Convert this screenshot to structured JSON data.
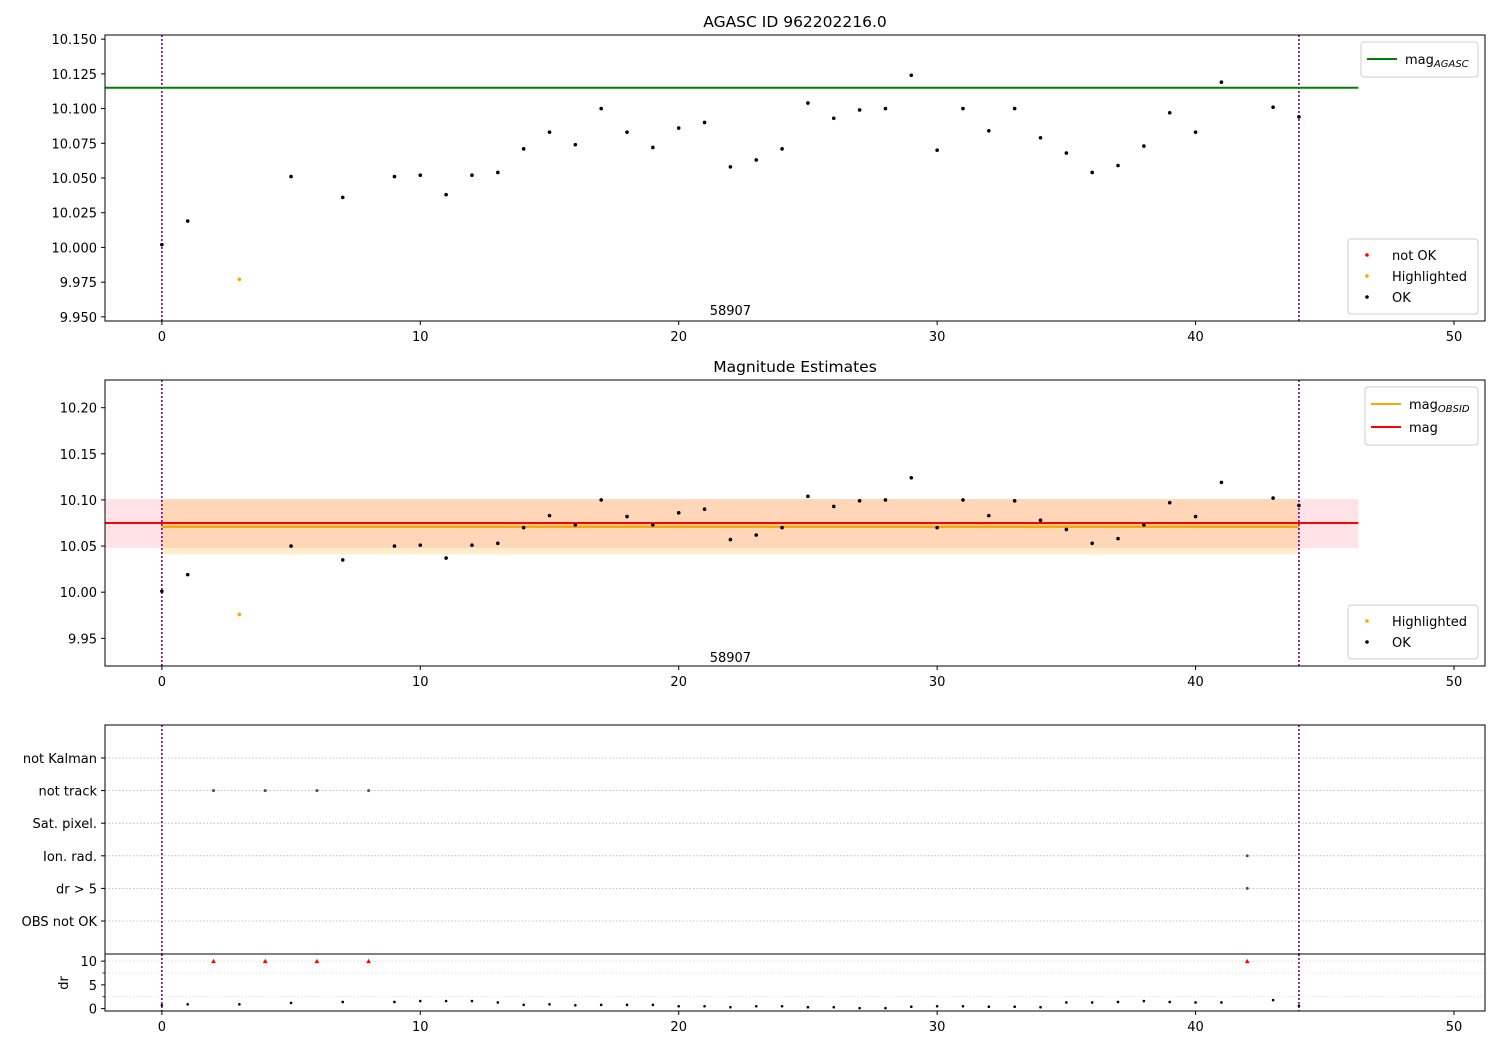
{
  "chart_data": [
    {
      "type": "scatter",
      "title": "AGASC ID 962202216.0",
      "xlim": [
        -2.2,
        51.2
      ],
      "ylim": [
        9.947,
        10.153
      ],
      "xticks": [
        0,
        10,
        20,
        30,
        40,
        50
      ],
      "yticks": [
        9.95,
        9.975,
        10.0,
        10.025,
        10.05,
        10.075,
        10.1,
        10.125,
        10.15
      ],
      "ytick_labels": [
        "9.950",
        "9.975",
        "10.000",
        "10.025",
        "10.050",
        "10.075",
        "10.100",
        "10.125",
        "10.150"
      ],
      "text_annotation": {
        "x": 22,
        "y": 9.955,
        "text": "58907"
      },
      "vlines": [
        0,
        44
      ],
      "vline_color": "#800080",
      "hline": {
        "name": "magAGASC",
        "label_main": "mag",
        "label_sub": "AGASC",
        "y": 10.115,
        "x_end": 46.3,
        "color": "#008000"
      },
      "series": [
        {
          "name": "not OK",
          "color": "#ff0000",
          "x": [],
          "y": []
        },
        {
          "name": "Highlighted",
          "color": "#ffa500",
          "x": [
            3
          ],
          "y": [
            9.977
          ]
        },
        {
          "name": "OK",
          "color": "#000000",
          "x": [
            0,
            1,
            5,
            7,
            9,
            10,
            11,
            12,
            13,
            14,
            15,
            16,
            17,
            18,
            19,
            20,
            21,
            22,
            23,
            24,
            25,
            26,
            27,
            28,
            29,
            30,
            31,
            32,
            33,
            34,
            35,
            36,
            37,
            38,
            39,
            40,
            41,
            43,
            44
          ],
          "y": [
            10.002,
            10.019,
            10.051,
            10.036,
            10.051,
            10.052,
            10.038,
            10.052,
            10.054,
            10.071,
            10.083,
            10.074,
            10.1,
            10.083,
            10.072,
            10.086,
            10.09,
            10.058,
            10.063,
            10.071,
            10.104,
            10.093,
            10.099,
            10.1,
            10.124,
            10.07,
            10.1,
            10.084,
            10.1,
            10.079,
            10.068,
            10.054,
            10.059,
            10.073,
            10.097,
            10.083,
            10.119,
            10.101,
            10.094
          ]
        }
      ],
      "legend_lines": [
        {
          "label_main": "mag",
          "label_sub": "AGASC",
          "color": "#008000"
        }
      ],
      "legend_lines_loc": "upper right",
      "legend_points": [
        {
          "label": "not OK",
          "color": "#ff0000"
        },
        {
          "label": "Highlighted",
          "color": "#ffa500"
        },
        {
          "label": "OK",
          "color": "#000000"
        }
      ],
      "legend_points_loc": "lower right"
    },
    {
      "type": "scatter",
      "title": "Magnitude Estimates",
      "xlim": [
        -2.2,
        51.2
      ],
      "ylim": [
        9.92,
        10.23
      ],
      "xticks": [
        0,
        10,
        20,
        30,
        40,
        50
      ],
      "yticks": [
        9.95,
        10.0,
        10.05,
        10.1,
        10.15,
        10.2
      ],
      "ytick_labels": [
        "9.95",
        "10.00",
        "10.05",
        "10.10",
        "10.15",
        "10.20"
      ],
      "text_annotation": {
        "x": 22,
        "y": 9.93,
        "text": "58907"
      },
      "vlines": [
        0,
        44
      ],
      "vline_color": "#800080",
      "bands": [
        {
          "x": [
            -2.2,
            46.3
          ],
          "y": [
            10.048,
            10.101
          ],
          "color": "#ff8090",
          "opacity": 0.22
        },
        {
          "x": [
            0,
            44
          ],
          "y": [
            10.041,
            10.101
          ],
          "color": "#ffa500",
          "opacity": 0.2
        }
      ],
      "lines": [
        {
          "label_main": "mag",
          "label_sub": "OBSID",
          "x": [
            0,
            44
          ],
          "y": 10.071,
          "color": "#ffa500",
          "width": 2.5
        },
        {
          "label_main": "mag",
          "label_sub": "",
          "x": [
            -2.2,
            46.3
          ],
          "y": 10.075,
          "color": "#ff0000",
          "width": 2
        }
      ],
      "series": [
        {
          "name": "Highlighted",
          "color": "#ffa500",
          "x": [
            3
          ],
          "y": [
            9.976
          ]
        },
        {
          "name": "OK",
          "color": "#000000",
          "x": [
            0,
            1,
            5,
            7,
            9,
            10,
            11,
            12,
            13,
            14,
            15,
            16,
            17,
            18,
            19,
            20,
            21,
            22,
            23,
            24,
            25,
            26,
            27,
            28,
            29,
            30,
            31,
            32,
            33,
            34,
            35,
            36,
            37,
            38,
            39,
            40,
            41,
            43,
            44
          ],
          "y": [
            10.001,
            10.019,
            10.05,
            10.035,
            10.05,
            10.051,
            10.037,
            10.051,
            10.053,
            10.07,
            10.083,
            10.073,
            10.1,
            10.082,
            10.073,
            10.086,
            10.09,
            10.057,
            10.062,
            10.07,
            10.104,
            10.093,
            10.099,
            10.1,
            10.124,
            10.07,
            10.1,
            10.083,
            10.099,
            10.078,
            10.068,
            10.053,
            10.058,
            10.073,
            10.097,
            10.082,
            10.119,
            10.102,
            10.094
          ]
        }
      ],
      "legend_lines": [
        {
          "label_main": "mag",
          "label_sub": "OBSID",
          "color": "#ffa500"
        },
        {
          "label_main": "mag",
          "label_sub": "",
          "color": "#ff0000"
        }
      ],
      "legend_lines_loc": "upper right",
      "legend_points": [
        {
          "label": "Highlighted",
          "color": "#ffa500"
        },
        {
          "label": "OK",
          "color": "#000000"
        }
      ],
      "legend_points_loc": "lower right"
    },
    {
      "type": "scatter",
      "title": "",
      "xlim": [
        -2.2,
        51.2
      ],
      "ylim": [
        -0.5,
        6.5
      ],
      "xticks": [
        0,
        10,
        20,
        30,
        40,
        50
      ],
      "category_rows": [
        "not Kalman",
        "not track",
        "Sat. pixel.",
        "Ion. rad.",
        "dr > 5",
        "OBS not OK"
      ],
      "flags": [
        {
          "row": "not track",
          "x": [
            2,
            4,
            6,
            8
          ]
        },
        {
          "row": "Ion. rad.",
          "x": [
            42
          ]
        },
        {
          "row": "dr > 5",
          "x": [
            42
          ]
        }
      ],
      "vlines": [
        0,
        44
      ],
      "vline_color": "#800080"
    },
    {
      "type": "scatter",
      "title": "",
      "ylabel": "dr",
      "xlim": [
        -2.2,
        51.2
      ],
      "ylim": [
        -0.5,
        11.5
      ],
      "xticks": [
        0,
        10,
        20,
        30,
        40,
        50
      ],
      "yticks": [
        0,
        5,
        10
      ],
      "vlines": [
        0,
        44
      ],
      "vline_color": "#800080",
      "hline": {
        "y": 10,
        "color": "#d3d3d3"
      },
      "series": [
        {
          "name": "dr",
          "color": "#000000",
          "x": [
            0,
            1,
            3,
            5,
            7,
            9,
            10,
            11,
            12,
            13,
            14,
            15,
            16,
            17,
            18,
            19,
            20,
            21,
            22,
            23,
            24,
            25,
            26,
            27,
            28,
            29,
            30,
            31,
            32,
            33,
            34,
            35,
            36,
            37,
            38,
            39,
            40,
            41,
            43,
            44
          ],
          "y": [
            0.7,
            0.9,
            0.9,
            1.2,
            1.4,
            1.4,
            1.6,
            1.6,
            1.6,
            1.3,
            0.8,
            0.9,
            0.7,
            0.8,
            0.8,
            0.8,
            0.5,
            0.5,
            0.3,
            0.5,
            0.5,
            0.3,
            0.3,
            0.1,
            0.1,
            0.4,
            0.5,
            0.5,
            0.4,
            0.4,
            0.3,
            1.3,
            1.3,
            1.4,
            1.6,
            1.4,
            1.3,
            1.3,
            1.8,
            0.6
          ]
        },
        {
          "name": "dr > 5",
          "color": "#ff0000",
          "marker": "triangle",
          "x": [
            2,
            4,
            6,
            8,
            42
          ],
          "y": [
            10,
            10,
            10,
            10,
            10
          ]
        }
      ]
    }
  ]
}
